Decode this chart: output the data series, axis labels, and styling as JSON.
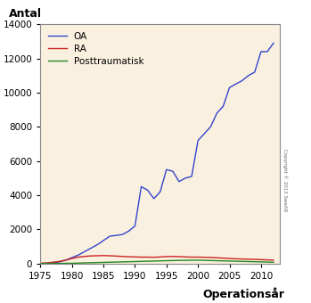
{
  "xlabel": "Operationsår",
  "ylabel_title": "Antal",
  "fig_bg_color": "#ffffff",
  "plot_bg_color": "#FAF0E0",
  "xlim": [
    1975,
    2013
  ],
  "ylim": [
    0,
    14000
  ],
  "yticks": [
    0,
    2000,
    4000,
    6000,
    8000,
    10000,
    12000,
    14000
  ],
  "xticks": [
    1975,
    1980,
    1985,
    1990,
    1995,
    2000,
    2005,
    2010
  ],
  "copyright_text": "Copyright © 2013 SweAR",
  "legend": [
    "OA",
    "RA",
    "Posttraumatisk"
  ],
  "line_colors": [
    "#3344cc",
    "#cc2222",
    "#228822"
  ],
  "OA": {
    "years": [
      1975,
      1976,
      1977,
      1978,
      1979,
      1980,
      1981,
      1982,
      1983,
      1984,
      1985,
      1986,
      1987,
      1988,
      1989,
      1990,
      1991,
      1992,
      1993,
      1994,
      1995,
      1996,
      1997,
      1998,
      1999,
      2000,
      2001,
      2002,
      2003,
      2004,
      2005,
      2006,
      2007,
      2008,
      2009,
      2010,
      2011,
      2012
    ],
    "values": [
      10,
      20,
      50,
      100,
      200,
      350,
      500,
      700,
      900,
      1100,
      1350,
      1600,
      1650,
      1700,
      1900,
      2200,
      4500,
      4300,
      3800,
      4200,
      5500,
      5400,
      4800,
      5000,
      5100,
      7200,
      7600,
      8000,
      8800,
      9200,
      10300,
      10500,
      10700,
      11000,
      11200,
      12400,
      12400,
      12900
    ]
  },
  "RA": {
    "years": [
      1975,
      1976,
      1977,
      1978,
      1979,
      1980,
      1981,
      1982,
      1983,
      1984,
      1985,
      1986,
      1987,
      1988,
      1989,
      1990,
      1991,
      1992,
      1993,
      1994,
      1995,
      1996,
      1997,
      1998,
      1999,
      2000,
      2001,
      2002,
      2003,
      2004,
      2005,
      2006,
      2007,
      2008,
      2009,
      2010,
      2011,
      2012
    ],
    "values": [
      20,
      40,
      80,
      130,
      200,
      300,
      380,
      420,
      450,
      460,
      470,
      460,
      440,
      420,
      400,
      390,
      380,
      380,
      370,
      390,
      410,
      420,
      410,
      390,
      380,
      380,
      370,
      360,
      340,
      320,
      300,
      280,
      270,
      260,
      250,
      230,
      220,
      200
    ]
  },
  "Posttraumatisk": {
    "years": [
      1975,
      1976,
      1977,
      1978,
      1979,
      1980,
      1981,
      1982,
      1983,
      1984,
      1985,
      1986,
      1987,
      1988,
      1989,
      1990,
      1991,
      1992,
      1993,
      1994,
      1995,
      1996,
      1997,
      1998,
      1999,
      2000,
      2001,
      2002,
      2003,
      2004,
      2005,
      2006,
      2007,
      2008,
      2009,
      2010,
      2011,
      2012
    ],
    "values": [
      5,
      5,
      8,
      10,
      15,
      20,
      30,
      40,
      50,
      60,
      70,
      80,
      90,
      100,
      110,
      120,
      130,
      140,
      150,
      160,
      170,
      180,
      190,
      190,
      200,
      200,
      190,
      180,
      170,
      160,
      150,
      140,
      130,
      120,
      110,
      100,
      90,
      80
    ]
  }
}
